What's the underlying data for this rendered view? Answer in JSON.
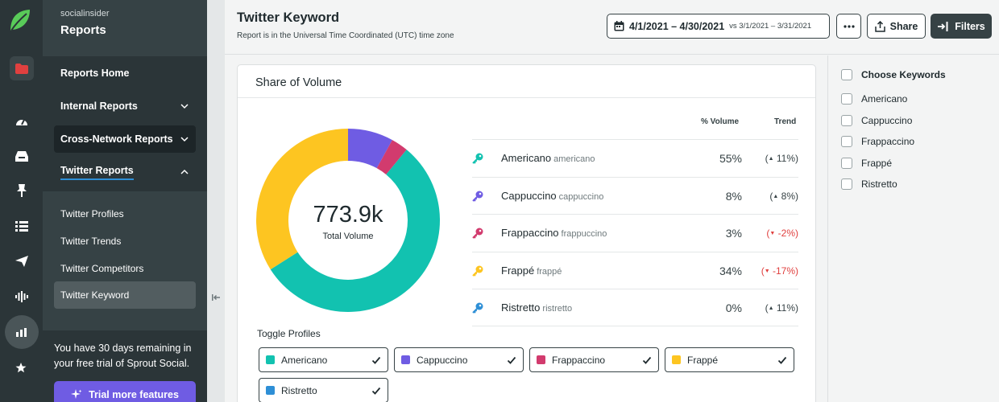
{
  "sidebar": {
    "brand": "socialinsider",
    "section_title": "Reports",
    "items": [
      {
        "label": "Reports Home"
      },
      {
        "label": "Internal Reports"
      },
      {
        "label": "Cross-Network Reports"
      },
      {
        "label": "Twitter Reports"
      }
    ],
    "sub_items": [
      {
        "label": "Twitter Profiles"
      },
      {
        "label": "Twitter Trends"
      },
      {
        "label": "Twitter Competitors"
      },
      {
        "label": "Twitter Keyword"
      }
    ],
    "trial_text": "You have 30 days remaining in your free trial of Sprout Social.",
    "trial_button": "Trial more features"
  },
  "header": {
    "title": "Twitter Keyword",
    "subtitle": "Report is in the Universal Time Coordinated (UTC) time zone",
    "date_range": "4/1/2021 – 4/30/2021",
    "compare_range": "vs 3/1/2021 – 3/31/2021",
    "share_label": "Share",
    "filters_label": "Filters"
  },
  "card": {
    "title": "Share of Volume",
    "total_value": "773.9k",
    "total_label": "Total Volume",
    "col_volume": "% Volume",
    "col_trend": "Trend",
    "toggle_label": "Toggle Profiles"
  },
  "keywords": [
    {
      "name": "Americano",
      "alias": "americano",
      "volume": "55%",
      "trend": "11%",
      "trend_dir": "up",
      "color": "#12c2b0"
    },
    {
      "name": "Cappuccino",
      "alias": "cappuccino",
      "volume": "8%",
      "trend": "8%",
      "trend_dir": "up",
      "color": "#6f5ce3"
    },
    {
      "name": "Frappaccino",
      "alias": "frappuccino",
      "volume": "3%",
      "trend": "-2%",
      "trend_dir": "down",
      "color": "#d23b6e"
    },
    {
      "name": "Frappé",
      "alias": "frappé",
      "volume": "34%",
      "trend": "-17%",
      "trend_dir": "down",
      "color": "#fdc521"
    },
    {
      "name": "Ristretto",
      "alias": "ristretto",
      "volume": "0%",
      "trend": "11%",
      "trend_dir": "up",
      "color": "#2e8fd6"
    }
  ],
  "chart_data": {
    "type": "pie",
    "categories": [
      "Americano",
      "Cappuccino",
      "Frappaccino",
      "Frappé",
      "Ristretto"
    ],
    "values": [
      55,
      8,
      3,
      34,
      0
    ],
    "colors": [
      "#12c2b0",
      "#6f5ce3",
      "#d23b6e",
      "#fdc521",
      "#2e8fd6"
    ],
    "donut": true,
    "center_value": "773.9k",
    "center_label": "Total Volume"
  },
  "right_panel": {
    "title": "Choose Keywords",
    "options": [
      "Americano",
      "Cappuccino",
      "Frappaccino",
      "Frappé",
      "Ristretto"
    ]
  }
}
